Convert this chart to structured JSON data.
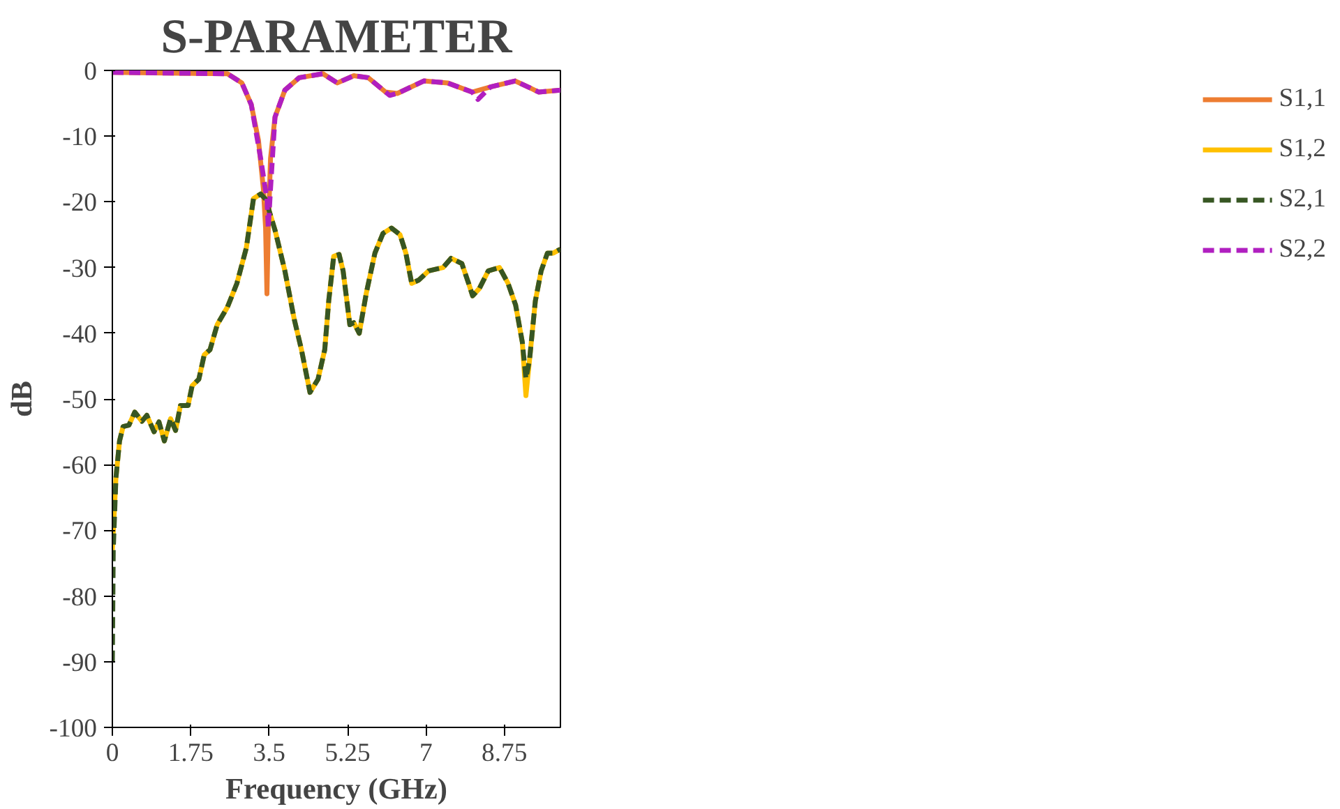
{
  "chart_data": {
    "type": "line",
    "title": "S-PARAMETER",
    "xlabel": "Frequency (GHz)",
    "ylabel": "dB",
    "xlim": [
      0,
      10
    ],
    "xticks": [
      0,
      1.75,
      3.5,
      5.25,
      7,
      8.75
    ],
    "ylim": [
      -100,
      0
    ],
    "yticks": [
      -100,
      -90,
      -80,
      -70,
      -60,
      -50,
      -40,
      -30,
      -20,
      -10,
      0
    ],
    "grid": false,
    "legend": "right",
    "marker": "none",
    "series": [
      {
        "name": "S1,1",
        "color": "#ed7d31",
        "line_style": "solid",
        "x": [
          0,
          2.57,
          2.89,
          3.1,
          3.26,
          3.37,
          3.42,
          3.45,
          3.48,
          3.53,
          3.63,
          3.85,
          4.17,
          4.7,
          5.02,
          5.39,
          5.71,
          6.1,
          6.36,
          6.95,
          7.48,
          8.03,
          8.44,
          8.99,
          9.52,
          10
        ],
        "values": [
          -0.3,
          -0.5,
          -1.9,
          -5.2,
          -10.6,
          -18,
          -24,
          -34,
          -24,
          -13.4,
          -7.1,
          -3,
          -1.1,
          -0.5,
          -1.9,
          -0.8,
          -1.1,
          -3.3,
          -3.5,
          -1.6,
          -1.9,
          -3.3,
          -2.5,
          -1.6,
          -3.3,
          -3
        ]
      },
      {
        "name": "S1,2",
        "color": "#ffc000",
        "line_style": "solid",
        "x": [
          0,
          0.08,
          0.16,
          0.24,
          0.37,
          0.5,
          0.66,
          0.77,
          0.93,
          1.04,
          1.16,
          1.3,
          1.41,
          1.52,
          1.69,
          1.78,
          1.93,
          2.05,
          2.18,
          2.34,
          2.57,
          2.78,
          2.99,
          3.15,
          3.31,
          3.42,
          3.63,
          3.85,
          4.06,
          4.22,
          4.41,
          4.59,
          4.74,
          4.83,
          4.94,
          5.06,
          5.15,
          5.3,
          5.39,
          5.51,
          5.67,
          5.86,
          6.04,
          6.23,
          6.42,
          6.55,
          6.68,
          6.84,
          7.06,
          7.38,
          7.56,
          7.8,
          7.95,
          8.04,
          8.19,
          8.39,
          8.64,
          8.83,
          9.0,
          9.15,
          9.23,
          9.31,
          9.44,
          9.57,
          9.71,
          9.84,
          10
        ],
        "values": [
          -73,
          -62,
          -56.4,
          -54.2,
          -54,
          -52,
          -53.4,
          -52.5,
          -55,
          -53.5,
          -56.4,
          -53,
          -54.8,
          -51,
          -51,
          -48,
          -47,
          -43.3,
          -42.5,
          -38.7,
          -36,
          -32.4,
          -27,
          -19.5,
          -18.8,
          -19.6,
          -24.3,
          -30.5,
          -37.9,
          -42.5,
          -49,
          -47,
          -42.5,
          -35,
          -28.3,
          -28,
          -30.5,
          -38.7,
          -38.4,
          -40,
          -33.8,
          -27.8,
          -24.8,
          -24,
          -25,
          -27.8,
          -32.4,
          -31.9,
          -30.5,
          -30,
          -28.6,
          -29.4,
          -32.4,
          -34.3,
          -33.2,
          -30.5,
          -30,
          -32.4,
          -35.7,
          -41.4,
          -49.5,
          -44.1,
          -35.1,
          -30.5,
          -27.8,
          -27.8,
          -27.2
        ]
      },
      {
        "name": "S2,1",
        "color": "#375623",
        "line_style": "dashed",
        "x": [
          0,
          0.02,
          0.08,
          0.16,
          0.24,
          0.37,
          0.5,
          0.66,
          0.77,
          0.93,
          1.04,
          1.16,
          1.3,
          1.41,
          1.52,
          1.69,
          1.78,
          1.93,
          2.05,
          2.18,
          2.34,
          2.57,
          2.78,
          2.99,
          3.15,
          3.31,
          3.42,
          3.63,
          3.85,
          4.06,
          4.22,
          4.41,
          4.59,
          4.74,
          4.83,
          4.94,
          5.06,
          5.15,
          5.3,
          5.39,
          5.51,
          5.67,
          5.86,
          6.04,
          6.23,
          6.42,
          6.55,
          6.68,
          6.84,
          7.06,
          7.38,
          7.56,
          7.8,
          7.95,
          8.04,
          8.19,
          8.39,
          8.64,
          8.83,
          9.0,
          9.15,
          9.23,
          9.31,
          9.44,
          9.57,
          9.71,
          9.84,
          10
        ],
        "values": [
          -90,
          -73,
          -62,
          -56.4,
          -54.2,
          -54,
          -52,
          -53.4,
          -52.5,
          -55,
          -53.5,
          -56.4,
          -53,
          -54.8,
          -51,
          -51,
          -48,
          -47,
          -43.3,
          -42.5,
          -38.7,
          -36,
          -32.4,
          -27,
          -19.5,
          -18.8,
          -19.6,
          -24.3,
          -30.5,
          -37.9,
          -42.5,
          -49,
          -47,
          -42.5,
          -35,
          -28.3,
          -28,
          -30.5,
          -38.7,
          -38.4,
          -40,
          -33.8,
          -27.8,
          -24.8,
          -24,
          -25,
          -27.8,
          -32.4,
          -31.9,
          -30.5,
          -30,
          -28.6,
          -29.4,
          -32.4,
          -34.3,
          -33.2,
          -30.5,
          -30,
          -32.4,
          -35.7,
          -41.4,
          -46.9,
          -44.1,
          -35.1,
          -30.5,
          -27.8,
          -27.8,
          -27.2
        ]
      },
      {
        "name": "S2,2",
        "color": "#b01fc0",
        "line_style": "dashed",
        "x": [
          0,
          2.57,
          2.89,
          3.1,
          3.31,
          3.45,
          3.48,
          3.53,
          3.58,
          3.63,
          3.85,
          4.17,
          4.7,
          5.02,
          5.39,
          5.71,
          6.1,
          6.19,
          6.36,
          6.95,
          7.48,
          8.03,
          8.16,
          8.44,
          8.99,
          9.52,
          10
        ],
        "values": [
          -0.3,
          -0.5,
          -1.9,
          -5.2,
          -13.4,
          -19.6,
          -24,
          -18,
          -12.5,
          -7.1,
          -3,
          -1.1,
          -0.5,
          -1.9,
          -0.8,
          -1.1,
          -3.3,
          -3.8,
          -3.5,
          -1.6,
          -1.9,
          -3.3,
          -4.4,
          -2.5,
          -1.6,
          -3.3,
          -3
        ]
      }
    ]
  }
}
